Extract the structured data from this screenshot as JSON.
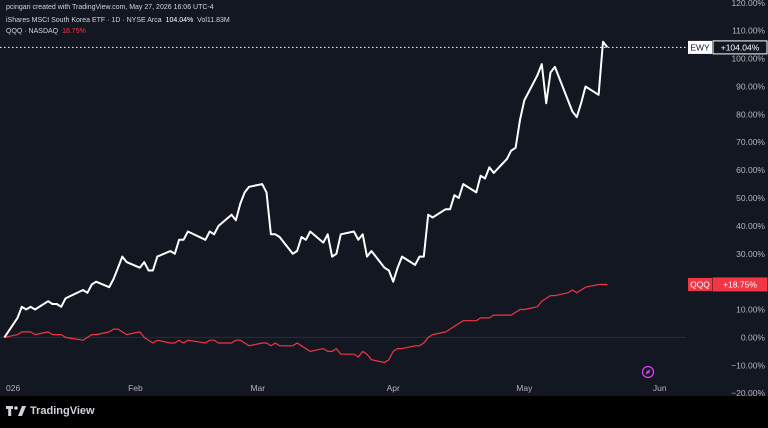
{
  "header": {
    "credit": "pcingari created with TradingView.com, May 27, 2026 16:06 UTC-4",
    "main_series": {
      "name": "iShares MSCI South Korea ETF · 1D · NYSE Arca",
      "change": "104.04%",
      "volume_label": "Vol",
      "volume": "11.83M"
    },
    "compare_series": {
      "name": "QQQ · NASDAQ",
      "change": "18.75%"
    }
  },
  "brand": {
    "name": "TradingView"
  },
  "colors": {
    "background": "#131722",
    "ewy": "#ffffff",
    "qqq": "#f23645",
    "text": "#b2b5be"
  },
  "chart_data": {
    "type": "line",
    "ylim": [
      -21,
      121
    ],
    "y_ticks": [
      120,
      110,
      100,
      90,
      80,
      70,
      60,
      50,
      40,
      30,
      20,
      10,
      0,
      -10,
      -20
    ],
    "y_tick_labels": [
      "120.00%",
      "110.00%",
      "100.00%",
      "90.00%",
      "80.00%",
      "70.00%",
      "60.00%",
      "50.00%",
      "40.00%",
      "30.00%",
      "20.00%",
      "10.00%",
      "0.00%",
      "−10.00%",
      "−20.00%"
    ],
    "x_tick_labels": [
      {
        "label": "026",
        "date": "2026-01-01"
      },
      {
        "label": "Feb",
        "date": "2026-02-01"
      },
      {
        "label": "Mar",
        "date": "2026-03-01"
      },
      {
        "label": "Apr",
        "date": "2026-04-01"
      },
      {
        "label": "May",
        "date": "2026-05-01"
      },
      {
        "label": "Jun",
        "date": "2026-06-01"
      }
    ],
    "xlim": [
      "2026-01-01",
      "2026-06-07"
    ],
    "series": [
      {
        "name": "EWY",
        "last_label": "+104.04%",
        "points": [
          [
            "2026-01-02",
            0
          ],
          [
            "2026-01-05",
            7
          ],
          [
            "2026-01-06",
            11
          ],
          [
            "2026-01-07",
            10
          ],
          [
            "2026-01-08",
            11
          ],
          [
            "2026-01-09",
            10
          ],
          [
            "2026-01-12",
            13
          ],
          [
            "2026-01-13",
            12
          ],
          [
            "2026-01-14",
            12
          ],
          [
            "2026-01-15",
            11
          ],
          [
            "2026-01-16",
            14
          ],
          [
            "2026-01-20",
            17
          ],
          [
            "2026-01-21",
            16
          ],
          [
            "2026-01-22",
            19
          ],
          [
            "2026-01-23",
            20
          ],
          [
            "2026-01-26",
            18
          ],
          [
            "2026-01-27",
            21
          ],
          [
            "2026-01-28",
            25
          ],
          [
            "2026-01-29",
            29
          ],
          [
            "2026-01-30",
            27
          ],
          [
            "2026-02-02",
            25
          ],
          [
            "2026-02-03",
            27
          ],
          [
            "2026-02-04",
            24
          ],
          [
            "2026-02-05",
            24
          ],
          [
            "2026-02-06",
            29
          ],
          [
            "2026-02-09",
            31
          ],
          [
            "2026-02-10",
            30
          ],
          [
            "2026-02-11",
            35
          ],
          [
            "2026-02-12",
            35
          ],
          [
            "2026-02-13",
            38
          ],
          [
            "2026-02-17",
            35
          ],
          [
            "2026-02-18",
            38
          ],
          [
            "2026-02-19",
            37
          ],
          [
            "2026-02-20",
            40
          ],
          [
            "2026-02-23",
            44
          ],
          [
            "2026-02-24",
            42
          ],
          [
            "2026-02-25",
            48
          ],
          [
            "2026-02-26",
            52
          ],
          [
            "2026-02-27",
            54
          ],
          [
            "2026-03-02",
            55
          ],
          [
            "2026-03-03",
            52
          ],
          [
            "2026-03-04",
            37
          ],
          [
            "2026-03-05",
            37
          ],
          [
            "2026-03-06",
            36
          ],
          [
            "2026-03-09",
            30
          ],
          [
            "2026-03-10",
            31
          ],
          [
            "2026-03-11",
            36
          ],
          [
            "2026-03-12",
            35
          ],
          [
            "2026-03-13",
            38
          ],
          [
            "2026-03-16",
            34
          ],
          [
            "2026-03-17",
            37
          ],
          [
            "2026-03-18",
            29
          ],
          [
            "2026-03-19",
            30
          ],
          [
            "2026-03-20",
            37
          ],
          [
            "2026-03-23",
            38
          ],
          [
            "2026-03-24",
            35
          ],
          [
            "2026-03-25",
            37
          ],
          [
            "2026-03-26",
            29
          ],
          [
            "2026-03-27",
            31
          ],
          [
            "2026-03-30",
            25
          ],
          [
            "2026-03-31",
            24
          ],
          [
            "2026-04-01",
            20
          ],
          [
            "2026-04-02",
            25
          ],
          [
            "2026-04-03",
            29
          ],
          [
            "2026-04-06",
            26
          ],
          [
            "2026-04-07",
            29
          ],
          [
            "2026-04-08",
            29
          ],
          [
            "2026-04-09",
            44
          ],
          [
            "2026-04-10",
            43
          ],
          [
            "2026-04-13",
            46
          ],
          [
            "2026-04-14",
            46
          ],
          [
            "2026-04-15",
            51
          ],
          [
            "2026-04-16",
            50
          ],
          [
            "2026-04-17",
            55
          ],
          [
            "2026-04-20",
            52
          ],
          [
            "2026-04-21",
            58
          ],
          [
            "2026-04-22",
            57
          ],
          [
            "2026-04-23",
            61
          ],
          [
            "2026-04-24",
            59
          ],
          [
            "2026-04-27",
            64
          ],
          [
            "2026-04-28",
            67
          ],
          [
            "2026-04-29",
            68
          ],
          [
            "2026-04-30",
            78
          ],
          [
            "2026-05-01",
            85
          ],
          [
            "2026-05-04",
            94
          ],
          [
            "2026-05-05",
            98
          ],
          [
            "2026-05-06",
            84
          ],
          [
            "2026-05-07",
            95
          ],
          [
            "2026-05-08",
            97
          ],
          [
            "2026-05-11",
            85
          ],
          [
            "2026-05-12",
            81
          ],
          [
            "2026-05-13",
            79
          ],
          [
            "2026-05-14",
            84
          ],
          [
            "2026-05-15",
            90
          ],
          [
            "2026-05-18",
            87
          ],
          [
            "2026-05-19",
            106
          ],
          [
            "2026-05-20",
            104
          ]
        ]
      },
      {
        "name": "QQQ",
        "last_label": "+18.75%",
        "points": [
          [
            "2026-01-02",
            0
          ],
          [
            "2026-01-05",
            1
          ],
          [
            "2026-01-06",
            2
          ],
          [
            "2026-01-07",
            2
          ],
          [
            "2026-01-08",
            2
          ],
          [
            "2026-01-09",
            1
          ],
          [
            "2026-01-12",
            2
          ],
          [
            "2026-01-13",
            1
          ],
          [
            "2026-01-14",
            1
          ],
          [
            "2026-01-15",
            1
          ],
          [
            "2026-01-16",
            0
          ],
          [
            "2026-01-20",
            -1
          ],
          [
            "2026-01-21",
            0
          ],
          [
            "2026-01-22",
            1
          ],
          [
            "2026-01-23",
            1
          ],
          [
            "2026-01-26",
            2
          ],
          [
            "2026-01-27",
            3
          ],
          [
            "2026-01-28",
            3
          ],
          [
            "2026-01-29",
            2
          ],
          [
            "2026-01-30",
            1
          ],
          [
            "2026-02-02",
            2
          ],
          [
            "2026-02-03",
            0
          ],
          [
            "2026-02-04",
            -1
          ],
          [
            "2026-02-05",
            -2
          ],
          [
            "2026-02-06",
            -1
          ],
          [
            "2026-02-09",
            -2
          ],
          [
            "2026-02-10",
            -2
          ],
          [
            "2026-02-11",
            -1
          ],
          [
            "2026-02-12",
            -2
          ],
          [
            "2026-02-13",
            -1
          ],
          [
            "2026-02-17",
            -2
          ],
          [
            "2026-02-18",
            -1
          ],
          [
            "2026-02-19",
            -1
          ],
          [
            "2026-02-20",
            -2
          ],
          [
            "2026-02-23",
            -2
          ],
          [
            "2026-02-24",
            -1
          ],
          [
            "2026-02-25",
            -1
          ],
          [
            "2026-02-26",
            -2
          ],
          [
            "2026-02-27",
            -3
          ],
          [
            "2026-03-02",
            -2
          ],
          [
            "2026-03-03",
            -2
          ],
          [
            "2026-03-04",
            -3
          ],
          [
            "2026-03-05",
            -2
          ],
          [
            "2026-03-06",
            -3
          ],
          [
            "2026-03-09",
            -3
          ],
          [
            "2026-03-10",
            -2
          ],
          [
            "2026-03-11",
            -3
          ],
          [
            "2026-03-12",
            -4
          ],
          [
            "2026-03-13",
            -5
          ],
          [
            "2026-03-16",
            -4
          ],
          [
            "2026-03-17",
            -5
          ],
          [
            "2026-03-18",
            -5
          ],
          [
            "2026-03-19",
            -4
          ],
          [
            "2026-03-20",
            -6
          ],
          [
            "2026-03-23",
            -6
          ],
          [
            "2026-03-24",
            -7
          ],
          [
            "2026-03-25",
            -5
          ],
          [
            "2026-03-26",
            -6
          ],
          [
            "2026-03-27",
            -8
          ],
          [
            "2026-03-30",
            -9
          ],
          [
            "2026-03-31",
            -8
          ],
          [
            "2026-04-01",
            -5
          ],
          [
            "2026-04-02",
            -4
          ],
          [
            "2026-04-03",
            -4
          ],
          [
            "2026-04-06",
            -3
          ],
          [
            "2026-04-07",
            -3
          ],
          [
            "2026-04-08",
            -2
          ],
          [
            "2026-04-09",
            0
          ],
          [
            "2026-04-10",
            1
          ],
          [
            "2026-04-13",
            2
          ],
          [
            "2026-04-14",
            3
          ],
          [
            "2026-04-15",
            4
          ],
          [
            "2026-04-16",
            5
          ],
          [
            "2026-04-17",
            6
          ],
          [
            "2026-04-20",
            6
          ],
          [
            "2026-04-21",
            7
          ],
          [
            "2026-04-22",
            7
          ],
          [
            "2026-04-23",
            7
          ],
          [
            "2026-04-24",
            8
          ],
          [
            "2026-04-27",
            8
          ],
          [
            "2026-04-28",
            8
          ],
          [
            "2026-04-29",
            9
          ],
          [
            "2026-04-30",
            10
          ],
          [
            "2026-05-01",
            10
          ],
          [
            "2026-05-04",
            11
          ],
          [
            "2026-05-05",
            13
          ],
          [
            "2026-05-06",
            14
          ],
          [
            "2026-05-07",
            15
          ],
          [
            "2026-05-08",
            15
          ],
          [
            "2026-05-11",
            16
          ],
          [
            "2026-05-12",
            17
          ],
          [
            "2026-05-13",
            16
          ],
          [
            "2026-05-14",
            17
          ],
          [
            "2026-05-15",
            18
          ],
          [
            "2026-05-18",
            19
          ],
          [
            "2026-05-19",
            19
          ],
          [
            "2026-05-20",
            19
          ]
        ]
      }
    ],
    "grid": false,
    "legend": "top-left"
  }
}
